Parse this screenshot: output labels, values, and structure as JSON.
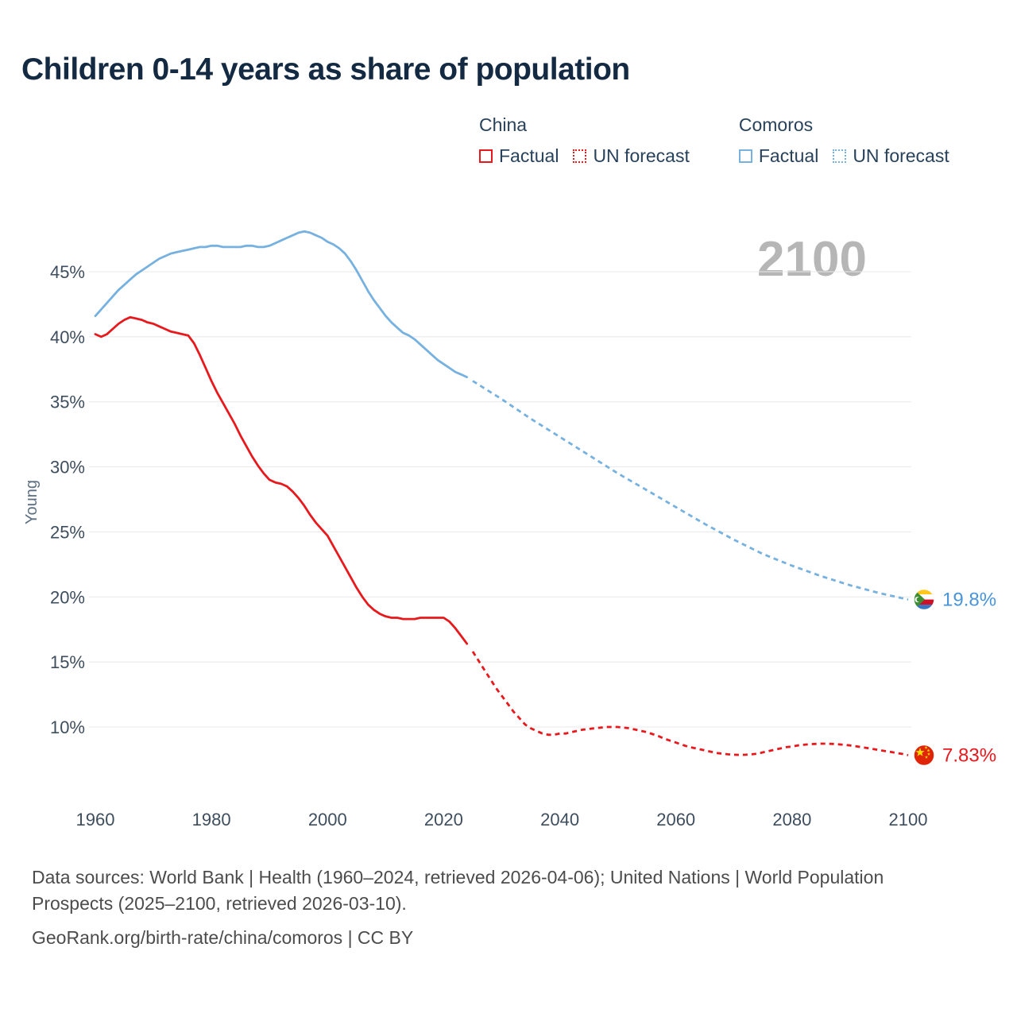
{
  "title": "Children 0-14 years as share of population",
  "legend": {
    "china": {
      "name": "China",
      "factual": "Factual",
      "forecast": "UN forecast"
    },
    "comoros": {
      "name": "Comoros",
      "factual": "Factual",
      "forecast": "UN forecast"
    }
  },
  "footer": {
    "sources": "Data sources: World Bank | Health (1960–2024, retrieved 2026-04-06); United Nations | World Population Prospects (2025–2100, retrieved 2026-03-10).",
    "attribution": "GeoRank.org/birth-rate/china/comoros | CC BY"
  },
  "chart_data": {
    "type": "line",
    "title": "Children 0-14 years as share of population",
    "xlabel": "",
    "ylabel": "Young",
    "watermark": "2100",
    "xlim": [
      1960,
      2100
    ],
    "ylim": [
      7,
      49
    ],
    "xticks": [
      1960,
      1980,
      2000,
      2020,
      2040,
      2060,
      2080,
      2100
    ],
    "yticks": [
      10,
      15,
      20,
      25,
      30,
      35,
      40,
      45
    ],
    "ytick_suffix": "%",
    "grid": "horizontal",
    "legend_position": "top-right",
    "colors": {
      "china": "#e8191d",
      "comoros": "#76b1e0",
      "china_label": "#e8191d",
      "comoros_label": "#4a94d8",
      "grid": "#e8e8e8",
      "watermark": "#b6b6b6"
    },
    "series": [
      {
        "name": "Comoros Factual",
        "country": "comoros",
        "style": "solid",
        "points": {
          "start": 1960,
          "step": 1,
          "values": [
            41.6,
            42.1,
            42.6,
            43.1,
            43.6,
            44.0,
            44.4,
            44.8,
            45.1,
            45.4,
            45.7,
            46.0,
            46.2,
            46.4,
            46.5,
            46.6,
            46.7,
            46.8,
            46.9,
            46.9,
            47.0,
            47.0,
            46.9,
            46.9,
            46.9,
            46.9,
            47.0,
            47.0,
            46.9,
            46.9,
            47.0,
            47.2,
            47.4,
            47.6,
            47.8,
            48.0,
            48.1,
            48.0,
            47.8,
            47.6,
            47.3,
            47.1,
            46.8,
            46.4,
            45.8,
            45.1,
            44.3,
            43.5,
            42.8,
            42.2,
            41.6,
            41.1,
            40.7,
            40.3,
            40.1,
            39.8,
            39.4,
            39.0,
            38.6,
            38.2,
            37.9,
            37.6,
            37.3,
            37.1,
            36.9
          ]
        }
      },
      {
        "name": "Comoros UN forecast",
        "country": "comoros",
        "style": "dashed",
        "points": {
          "start": 2025,
          "step": 5,
          "values": [
            36.6,
            35.2,
            33.7,
            32.3,
            30.9,
            29.5,
            28.2,
            26.9,
            25.6,
            24.4,
            23.3,
            22.4,
            21.6,
            20.9,
            20.3,
            19.8
          ]
        }
      },
      {
        "name": "China Factual",
        "country": "china",
        "style": "solid",
        "points": {
          "start": 1960,
          "step": 1,
          "values": [
            40.2,
            40.0,
            40.2,
            40.6,
            41.0,
            41.3,
            41.5,
            41.4,
            41.3,
            41.1,
            41.0,
            40.8,
            40.6,
            40.4,
            40.3,
            40.2,
            40.1,
            39.5,
            38.6,
            37.6,
            36.6,
            35.7,
            34.9,
            34.1,
            33.3,
            32.4,
            31.6,
            30.8,
            30.1,
            29.5,
            29.0,
            28.8,
            28.7,
            28.5,
            28.1,
            27.6,
            27.0,
            26.3,
            25.7,
            25.2,
            24.7,
            23.9,
            23.1,
            22.3,
            21.5,
            20.7,
            20.0,
            19.4,
            19.0,
            18.7,
            18.5,
            18.4,
            18.4,
            18.3,
            18.3,
            18.3,
            18.4,
            18.4,
            18.4,
            18.4,
            18.4,
            18.1,
            17.6,
            17.0,
            16.4
          ]
        }
      },
      {
        "name": "China UN forecast",
        "country": "china",
        "style": "dashed",
        "points": {
          "start": 2025,
          "step": 1,
          "values": [
            15.8,
            15.1,
            14.4,
            13.7,
            13.0,
            12.4,
            11.8,
            11.2,
            10.7,
            10.2,
            9.9,
            9.7,
            9.5,
            9.4,
            9.4,
            9.5,
            9.5,
            9.6,
            9.7,
            9.8,
            9.85,
            9.9,
            9.95,
            10.0,
            10.0,
            10.0,
            9.95,
            9.9,
            9.8,
            9.7,
            9.6,
            9.45,
            9.3,
            9.1,
            8.95,
            8.8,
            8.65,
            8.5,
            8.4,
            8.3,
            8.2,
            8.1,
            8.0,
            7.95,
            7.9,
            7.87,
            7.85,
            7.87,
            7.9,
            7.95,
            8.05,
            8.15,
            8.25,
            8.35,
            8.45,
            8.5,
            8.58,
            8.63,
            8.68,
            8.7,
            8.72,
            8.72,
            8.7,
            8.67,
            8.63,
            8.58,
            8.52,
            8.45,
            8.38,
            8.3,
            8.22,
            8.15,
            8.08,
            8.0,
            7.93,
            7.83
          ]
        }
      }
    ],
    "end_labels": [
      {
        "flag": "comoros",
        "text": "19.8%",
        "value": 19.8
      },
      {
        "flag": "china",
        "text": "7.83%",
        "value": 7.83
      }
    ]
  }
}
